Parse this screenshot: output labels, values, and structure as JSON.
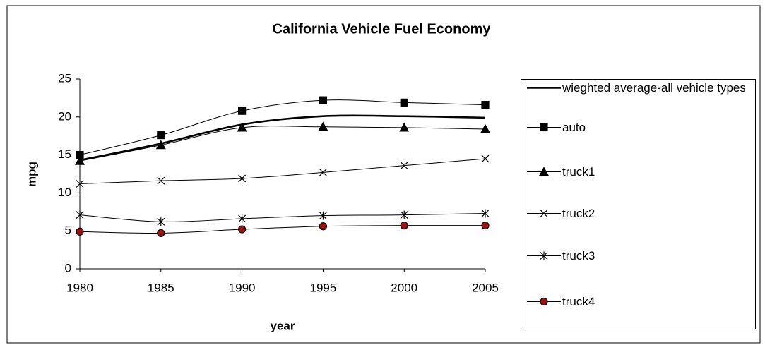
{
  "chart_data": {
    "type": "line",
    "title": "California Vehicle Fuel Economy",
    "x_label": "year",
    "y_label": "mpg",
    "x": [
      1980,
      1985,
      1990,
      1995,
      2000,
      2005
    ],
    "xlim": [
      1980,
      2005
    ],
    "xticks": [
      1980,
      1985,
      1990,
      1995,
      2000,
      2005
    ],
    "ylim": [
      0,
      25
    ],
    "yticks": [
      0,
      5,
      10,
      15,
      20,
      25
    ],
    "grid": false,
    "legend": "right",
    "smooth": true,
    "series": [
      {
        "name": "wieghted average-all vehicle types",
        "color": "#000000",
        "marker": "none",
        "values": [
          14.3,
          16.5,
          19.0,
          20.1,
          20.1,
          19.9
        ]
      },
      {
        "name": "auto",
        "color": "#000000",
        "marker": "square",
        "values": [
          15.0,
          17.6,
          20.8,
          22.2,
          21.9,
          21.6
        ]
      },
      {
        "name": "truck1",
        "color": "#000000",
        "marker": "triangle",
        "values": [
          14.2,
          16.3,
          18.6,
          18.7,
          18.6,
          18.4
        ]
      },
      {
        "name": "truck2",
        "color": "#000000",
        "marker": "x",
        "values": [
          11.2,
          11.6,
          11.9,
          12.7,
          13.6,
          14.5
        ]
      },
      {
        "name": "truck3",
        "color": "#000000",
        "marker": "star",
        "values": [
          7.1,
          6.2,
          6.6,
          7.0,
          7.1,
          7.3
        ]
      },
      {
        "name": "truck4",
        "color": "#000000",
        "marker": "circle",
        "marker_fill": "#a01010",
        "values": [
          4.9,
          4.7,
          5.2,
          5.6,
          5.7,
          5.7
        ]
      }
    ]
  }
}
